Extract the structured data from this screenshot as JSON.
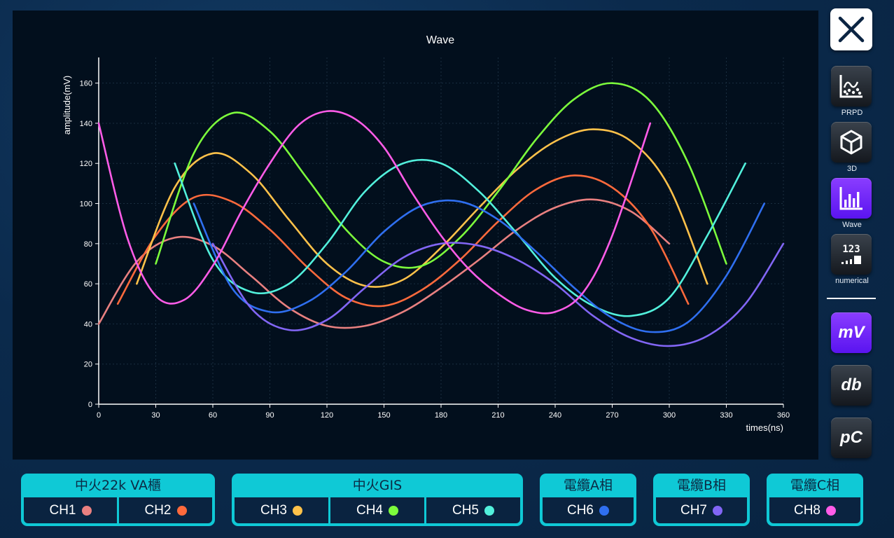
{
  "chart_data": {
    "type": "line",
    "title": "Wave",
    "xlabel": "times(ns)",
    "ylabel": "amplitude(mV)",
    "xlim": [
      0,
      360
    ],
    "ylim": [
      0,
      170
    ],
    "x_ticks": [
      0,
      30,
      60,
      90,
      120,
      150,
      180,
      210,
      240,
      270,
      300,
      330,
      360
    ],
    "y_ticks": [
      0,
      20,
      40,
      60,
      80,
      100,
      120,
      140,
      160
    ],
    "grid": true,
    "series": [
      {
        "name": "CH1",
        "color": "#e98080",
        "x": [
          0,
          20,
          40,
          60,
          80,
          100,
          120,
          140,
          160,
          180,
          200,
          220,
          240,
          260,
          280,
          300
        ],
        "y": [
          40,
          71,
          83,
          79,
          64,
          48,
          39,
          39,
          46,
          58,
          72,
          87,
          98,
          102,
          96,
          80
        ]
      },
      {
        "name": "CH2",
        "color": "#ff6a3c",
        "x": [
          10,
          30,
          50,
          70,
          90,
          110,
          130,
          150,
          170,
          190,
          210,
          230,
          250,
          270,
          290,
          310
        ],
        "y": [
          50,
          84,
          103,
          101,
          87,
          68,
          53,
          49,
          57,
          72,
          91,
          107,
          114,
          108,
          88,
          50
        ]
      },
      {
        "name": "CH3",
        "color": "#ffc24a",
        "x": [
          20,
          40,
          60,
          80,
          100,
          120,
          140,
          160,
          180,
          200,
          220,
          240,
          260,
          280,
          300,
          320
        ],
        "y": [
          60,
          108,
          125,
          115,
          92,
          70,
          59,
          62,
          78,
          98,
          117,
          131,
          137,
          131,
          108,
          60
        ]
      },
      {
        "name": "CH4",
        "color": "#7cfc3c",
        "x": [
          30,
          50,
          70,
          90,
          110,
          130,
          150,
          170,
          190,
          210,
          230,
          250,
          270,
          290,
          310,
          330
        ],
        "y": [
          70,
          125,
          145,
          136,
          112,
          87,
          71,
          69,
          83,
          106,
          132,
          152,
          160,
          151,
          120,
          70
        ]
      },
      {
        "name": "CH5",
        "color": "#52f0dc",
        "x": [
          40,
          60,
          80,
          100,
          120,
          140,
          160,
          180,
          200,
          220,
          240,
          260,
          280,
          300,
          320,
          340
        ],
        "y": [
          120,
          72,
          56,
          60,
          80,
          106,
          120,
          120,
          106,
          85,
          63,
          49,
          44,
          53,
          84,
          120
        ]
      },
      {
        "name": "CH6",
        "color": "#2f6ff0",
        "x": [
          50,
          70,
          90,
          110,
          130,
          150,
          170,
          190,
          210,
          230,
          250,
          270,
          290,
          310,
          330,
          350
        ],
        "y": [
          100,
          58,
          46,
          51,
          66,
          86,
          99,
          101,
          92,
          76,
          58,
          43,
          36,
          41,
          64,
          100
        ]
      },
      {
        "name": "CH7",
        "color": "#8266f5",
        "x": [
          60,
          80,
          100,
          120,
          140,
          160,
          180,
          200,
          220,
          240,
          260,
          280,
          300,
          320,
          340,
          360
        ],
        "y": [
          80,
          48,
          37,
          42,
          58,
          73,
          80,
          79,
          72,
          60,
          44,
          33,
          29,
          34,
          50,
          80
        ]
      },
      {
        "name": "CH8",
        "color": "#ff5ce8",
        "x": [
          0,
          15,
          30,
          45,
          60,
          75,
          90,
          105,
          120,
          135,
          150,
          165,
          180,
          195,
          210,
          225,
          240,
          255,
          270,
          290
        ],
        "y": [
          140,
          83,
          54,
          52,
          69,
          96,
          120,
          139,
          146,
          142,
          128,
          105,
          84,
          67,
          55,
          47,
          46,
          56,
          84,
          140
        ]
      }
    ]
  },
  "sidebar": {
    "buttons": [
      {
        "label": "PRPD",
        "icon": "scatter-chart-icon"
      },
      {
        "label": "3D",
        "icon": "cube-icon"
      },
      {
        "label": "Wave",
        "icon": "bar-chart-icon"
      },
      {
        "label": "numerical",
        "icon": "numeric-icon"
      }
    ],
    "units": [
      "mV",
      "db",
      "pC"
    ],
    "active": "Wave",
    "active_unit": "mV",
    "close_icon": "close-icon",
    "numeric_glyph": "123"
  },
  "groups": [
    {
      "title": "中火22k VA櫃",
      "channels": [
        {
          "label": "CH1",
          "color": "#e98080"
        },
        {
          "label": "CH2",
          "color": "#ff6a3c"
        }
      ]
    },
    {
      "title": "中火GIS",
      "channels": [
        {
          "label": "CH3",
          "color": "#ffc24a"
        },
        {
          "label": "CH4",
          "color": "#7cfc3c"
        },
        {
          "label": "CH5",
          "color": "#52f0dc"
        }
      ]
    },
    {
      "title": "電纜A相",
      "channels": [
        {
          "label": "CH6",
          "color": "#2f6ff0"
        }
      ]
    },
    {
      "title": "電纜B相",
      "channels": [
        {
          "label": "CH7",
          "color": "#8266f5"
        }
      ]
    },
    {
      "title": "電纜C相",
      "channels": [
        {
          "label": "CH8",
          "color": "#ff5ce8"
        }
      ]
    }
  ]
}
